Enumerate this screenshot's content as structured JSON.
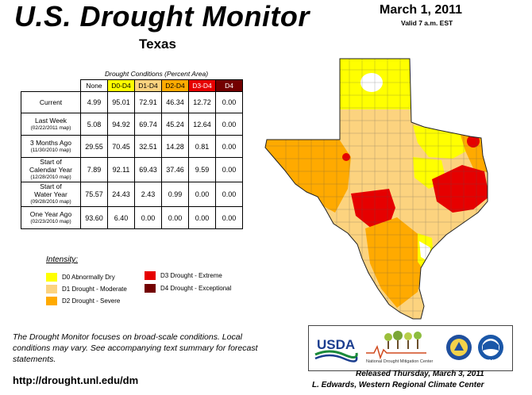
{
  "header": {
    "title": "U.S. Drought Monitor",
    "state": "Texas",
    "date": "March 1, 2011",
    "valid": "Valid 7 a.m. EST"
  },
  "table": {
    "caption": "Drought Conditions (Percent Area)",
    "columns": [
      "None",
      "D0-D4",
      "D1-D4",
      "D2-D4",
      "D3-D4",
      "D4"
    ],
    "column_colors": [
      "#ffffff",
      "#ffff00",
      "#fcd37f",
      "#ffaa00",
      "#e60000",
      "#730000"
    ],
    "rows": [
      {
        "label": "Current",
        "sub": "",
        "values": [
          "4.99",
          "95.01",
          "72.91",
          "46.34",
          "12.72",
          "0.00"
        ]
      },
      {
        "label": "Last Week",
        "sub": "(02/22/2011 map)",
        "values": [
          "5.08",
          "94.92",
          "69.74",
          "45.24",
          "12.64",
          "0.00"
        ]
      },
      {
        "label": "3 Months Ago",
        "sub": "(11/30/2010 map)",
        "values": [
          "29.55",
          "70.45",
          "32.51",
          "14.28",
          "0.81",
          "0.00"
        ]
      },
      {
        "label": "Start of",
        "label2": "Calendar Year",
        "sub": "(12/28/2010 map)",
        "values": [
          "7.89",
          "92.11",
          "69.43",
          "37.46",
          "9.59",
          "0.00"
        ]
      },
      {
        "label": "Start of",
        "label2": "Water Year",
        "sub": "(09/28/2010 map)",
        "values": [
          "75.57",
          "24.43",
          "2.43",
          "0.99",
          "0.00",
          "0.00"
        ]
      },
      {
        "label": "One Year Ago",
        "sub": "(02/23/2010 map)",
        "values": [
          "93.60",
          "6.40",
          "0.00",
          "0.00",
          "0.00",
          "0.00"
        ]
      }
    ]
  },
  "legend": {
    "title": "Intensity:",
    "items": [
      {
        "label": "D0 Abnormally Dry",
        "color": "#ffff00"
      },
      {
        "label": "D1 Drought - Moderate",
        "color": "#fcd37f"
      },
      {
        "label": "D2 Drought - Severe",
        "color": "#ffaa00"
      },
      {
        "label": "D3 Drought - Extreme",
        "color": "#e60000"
      },
      {
        "label": "D4 Drought - Exceptional",
        "color": "#730000"
      }
    ]
  },
  "footer": {
    "note": "The Drought Monitor focuses on broad-scale conditions. Local conditions may vary. See accompanying text summary for forecast statements.",
    "url": "http://drought.unl.edu/dm",
    "released": "Released Thursday, March 3, 2011",
    "author": "L. Edwards, Western Regional Climate Center"
  },
  "logos": {
    "usda": "USDA",
    "ndmc": "National Drought Mitigation Center",
    "noaa": "NOAA"
  },
  "map": {
    "region": "Texas",
    "colors": {
      "none": "#ffffff",
      "d0": "#ffff00",
      "d1": "#fcd37f",
      "d2": "#ffaa00",
      "d3": "#e60000",
      "d4": "#730000"
    }
  }
}
